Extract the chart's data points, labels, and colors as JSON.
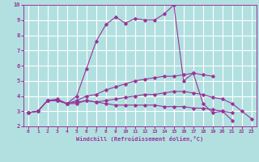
{
  "title": "",
  "xlabel": "Windchill (Refroidissement éolien,°C)",
  "ylabel": "",
  "background_color": "#b2e0e0",
  "grid_color": "#ffffff",
  "line_color": "#993399",
  "xlim": [
    -0.5,
    23.5
  ],
  "ylim": [
    2,
    10
  ],
  "xticks": [
    0,
    1,
    2,
    3,
    4,
    5,
    6,
    7,
    8,
    9,
    10,
    11,
    12,
    13,
    14,
    15,
    16,
    17,
    18,
    19,
    20,
    21,
    22,
    23
  ],
  "yticks": [
    2,
    3,
    4,
    5,
    6,
    7,
    8,
    9,
    10
  ],
  "lines": [
    {
      "x": [
        0,
        1,
        2,
        3,
        4,
        5,
        6,
        7,
        8,
        9,
        10,
        11,
        12,
        13,
        14,
        15,
        16,
        17,
        18,
        19,
        20,
        21
      ],
      "y": [
        2.9,
        3.0,
        3.7,
        3.7,
        3.5,
        4.0,
        5.8,
        7.6,
        8.7,
        9.2,
        8.8,
        9.1,
        9.0,
        9.0,
        9.4,
        10.0,
        5.0,
        5.5,
        3.5,
        2.9,
        3.0,
        2.4
      ]
    },
    {
      "x": [
        0,
        1,
        2,
        3,
        4,
        5,
        6,
        7,
        8,
        9,
        10,
        11,
        12,
        13,
        14,
        15,
        16,
        17,
        18,
        19
      ],
      "y": [
        2.9,
        3.0,
        3.7,
        3.7,
        3.5,
        3.7,
        4.0,
        4.1,
        4.4,
        4.6,
        4.8,
        5.0,
        5.1,
        5.2,
        5.3,
        5.3,
        5.4,
        5.5,
        5.4,
        5.3
      ]
    },
    {
      "x": [
        0,
        1,
        2,
        3,
        4,
        5,
        6,
        7,
        8,
        9,
        10,
        11,
        12,
        13,
        14,
        15,
        16,
        17,
        18,
        19,
        20,
        21
      ],
      "y": [
        2.9,
        3.0,
        3.7,
        3.8,
        3.5,
        3.6,
        3.7,
        3.6,
        3.5,
        3.4,
        3.4,
        3.4,
        3.4,
        3.4,
        3.3,
        3.3,
        3.3,
        3.2,
        3.2,
        3.1,
        3.0,
        2.9
      ]
    },
    {
      "x": [
        0,
        1,
        2,
        3,
        4,
        5,
        6,
        7,
        8,
        9,
        10,
        11,
        12,
        13,
        14,
        15,
        16,
        17,
        18,
        19,
        20,
        21,
        22,
        23
      ],
      "y": [
        2.9,
        3.0,
        3.7,
        3.7,
        3.5,
        3.5,
        3.7,
        3.6,
        3.7,
        3.8,
        3.9,
        4.0,
        4.1,
        4.1,
        4.2,
        4.3,
        4.3,
        4.2,
        4.1,
        3.9,
        3.8,
        3.5,
        3.0,
        2.5
      ]
    }
  ]
}
